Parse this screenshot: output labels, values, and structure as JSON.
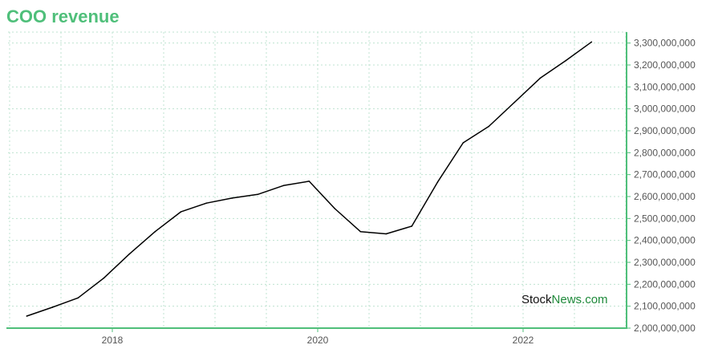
{
  "chart_data": {
    "type": "line",
    "title": "COO revenue",
    "xlabel": "",
    "ylabel": "",
    "x_ticks": [
      "2018",
      "2020",
      "2022"
    ],
    "y_ticks": [
      "2,000,000,000",
      "2,100,000,000",
      "2,200,000,000",
      "2,300,000,000",
      "2,400,000,000",
      "2,500,000,000",
      "2,600,000,000",
      "2,700,000,000",
      "2,800,000,000",
      "2,900,000,000",
      "3,000,000,000",
      "3,100,000,000",
      "3,200,000,000",
      "3,300,000,000"
    ],
    "ylim": [
      2000000000,
      3300000000
    ],
    "xlim": [
      "2017-02",
      "2023-03"
    ],
    "grid": true,
    "line_color": "#000000",
    "axis_color": "#4fbf7a",
    "series": [
      {
        "values": [
          {
            "x": "2017-03",
            "y": 2055000000
          },
          {
            "x": "2017-06",
            "y": 2095000000
          },
          {
            "x": "2017-09",
            "y": 2138000000
          },
          {
            "x": "2017-12",
            "y": 2228000000
          },
          {
            "x": "2018-03",
            "y": 2338000000
          },
          {
            "x": "2018-06",
            "y": 2440000000
          },
          {
            "x": "2018-09",
            "y": 2530000000
          },
          {
            "x": "2018-12",
            "y": 2570000000
          },
          {
            "x": "2019-03",
            "y": 2593000000
          },
          {
            "x": "2019-06",
            "y": 2610000000
          },
          {
            "x": "2019-09",
            "y": 2650000000
          },
          {
            "x": "2019-12",
            "y": 2670000000
          },
          {
            "x": "2020-03",
            "y": 2545000000
          },
          {
            "x": "2020-06",
            "y": 2440000000
          },
          {
            "x": "2020-09",
            "y": 2430000000
          },
          {
            "x": "2020-12",
            "y": 2465000000
          },
          {
            "x": "2021-03",
            "y": 2665000000
          },
          {
            "x": "2021-06",
            "y": 2845000000
          },
          {
            "x": "2021-09",
            "y": 2920000000
          },
          {
            "x": "2021-12",
            "y": 3030000000
          },
          {
            "x": "2022-03",
            "y": 3140000000
          },
          {
            "x": "2022-06",
            "y": 3220000000
          },
          {
            "x": "2022-09",
            "y": 3305000000
          }
        ]
      }
    ]
  },
  "watermark": {
    "part1": "Stock",
    "part2": "News",
    "part3": ".com"
  }
}
